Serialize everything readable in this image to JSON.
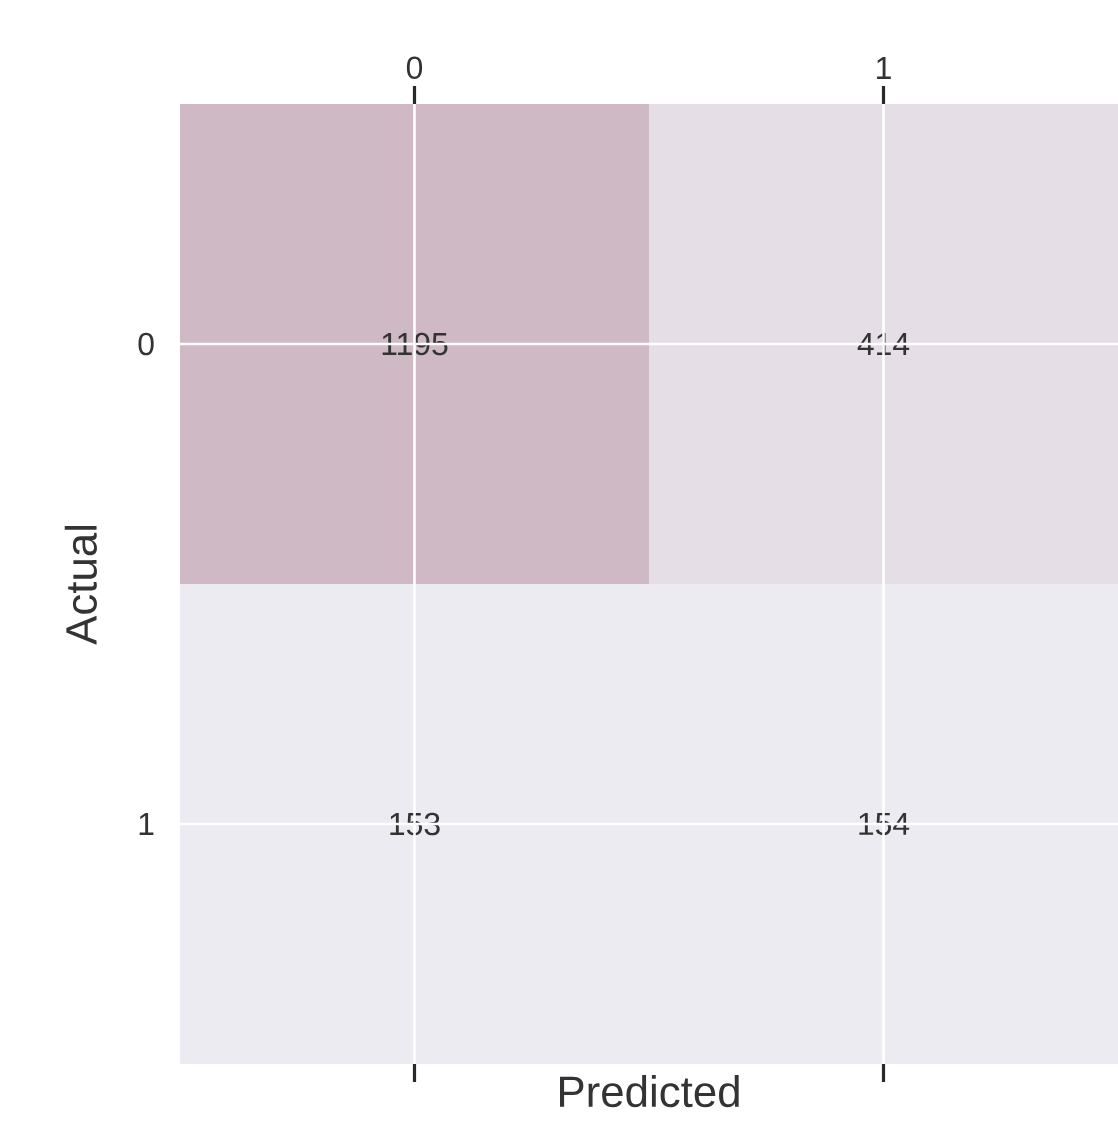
{
  "chart_data": {
    "type": "heatmap",
    "xlabel": "Predicted",
    "ylabel": "Actual",
    "categories": [
      "0",
      "1"
    ],
    "y_categories": [
      "0",
      "1"
    ],
    "cells": [
      [
        1195,
        414
      ],
      [
        153,
        154
      ]
    ],
    "colors": [
      "#ecebf1",
      "#cfb9c4"
    ],
    "data_labels": true,
    "grid": true
  }
}
